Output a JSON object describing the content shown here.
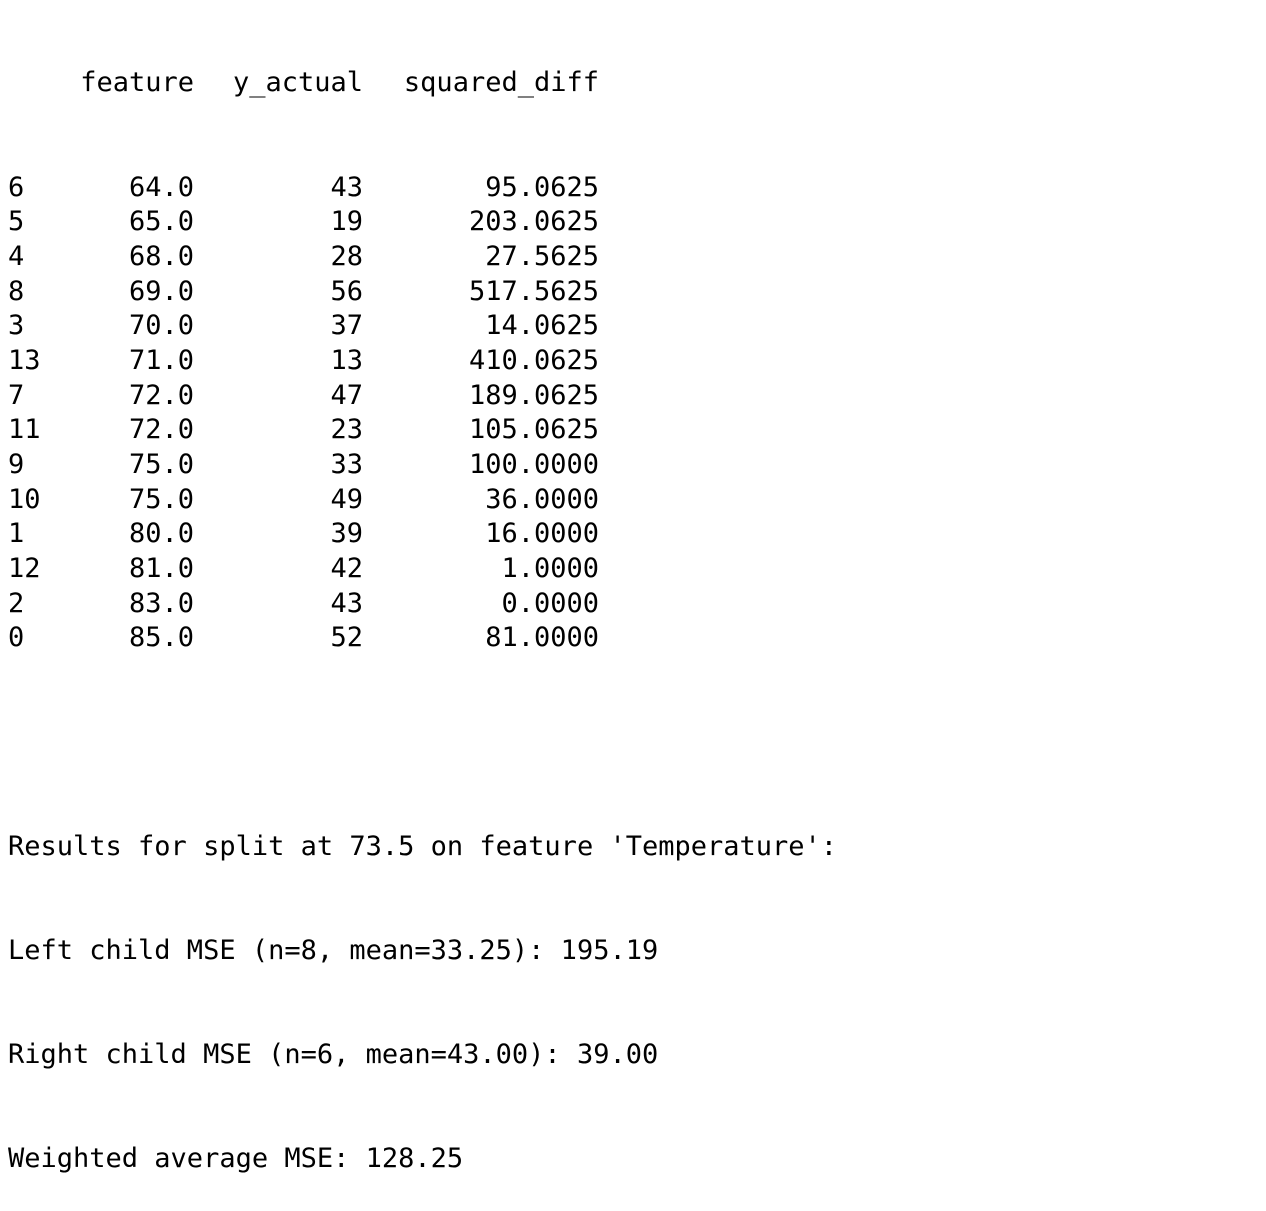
{
  "table": {
    "headers": {
      "feature": "feature",
      "y_actual": "y_actual",
      "squared_diff": "squared_diff"
    },
    "rows": [
      {
        "index": "6",
        "feature": "64.0",
        "y_actual": "43",
        "squared_diff": "95.0625"
      },
      {
        "index": "5",
        "feature": "65.0",
        "y_actual": "19",
        "squared_diff": "203.0625"
      },
      {
        "index": "4",
        "feature": "68.0",
        "y_actual": "28",
        "squared_diff": "27.5625"
      },
      {
        "index": "8",
        "feature": "69.0",
        "y_actual": "56",
        "squared_diff": "517.5625"
      },
      {
        "index": "3",
        "feature": "70.0",
        "y_actual": "37",
        "squared_diff": "14.0625"
      },
      {
        "index": "13",
        "feature": "71.0",
        "y_actual": "13",
        "squared_diff": "410.0625"
      },
      {
        "index": "7",
        "feature": "72.0",
        "y_actual": "47",
        "squared_diff": "189.0625"
      },
      {
        "index": "11",
        "feature": "72.0",
        "y_actual": "23",
        "squared_diff": "105.0625"
      },
      {
        "index": "9",
        "feature": "75.0",
        "y_actual": "33",
        "squared_diff": "100.0000"
      },
      {
        "index": "10",
        "feature": "75.0",
        "y_actual": "49",
        "squared_diff": "36.0000"
      },
      {
        "index": "1",
        "feature": "80.0",
        "y_actual": "39",
        "squared_diff": "16.0000"
      },
      {
        "index": "12",
        "feature": "81.0",
        "y_actual": "42",
        "squared_diff": "1.0000"
      },
      {
        "index": "2",
        "feature": "83.0",
        "y_actual": "43",
        "squared_diff": "0.0000"
      },
      {
        "index": "0",
        "feature": "85.0",
        "y_actual": "52",
        "squared_diff": "81.0000"
      }
    ]
  },
  "results": {
    "title": "Results for split at 73.5 on feature 'Temperature':",
    "left": "Left child MSE (n=8, mean=33.25): 195.19",
    "right": "Right child MSE (n=6, mean=43.00): 39.00",
    "weighted": "Weighted average MSE: 128.25"
  }
}
